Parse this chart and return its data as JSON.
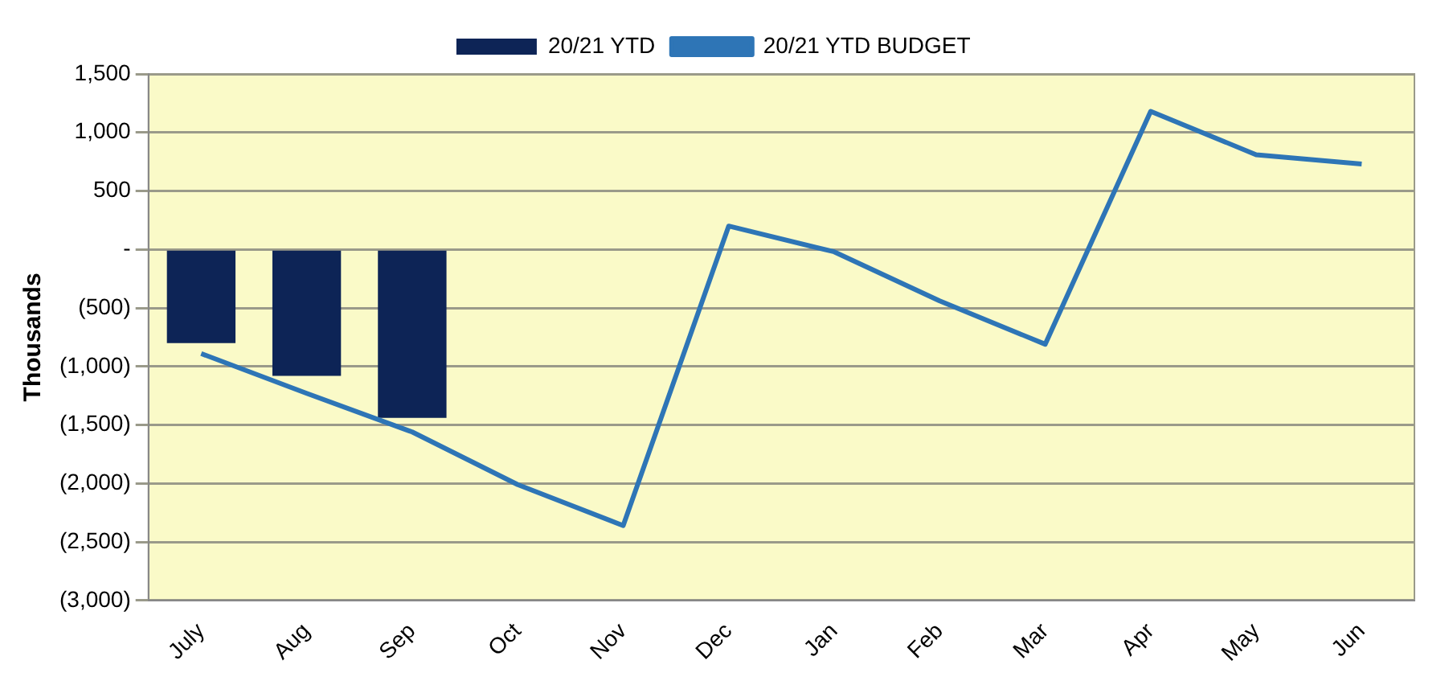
{
  "chart_data": {
    "type": "bar",
    "ylabel": "Thousands",
    "categories": [
      "July",
      "Aug",
      "Sep",
      "Oct",
      "Nov",
      "Dec",
      "Jan",
      "Feb",
      "Mar",
      "Apr",
      "May",
      "Jun"
    ],
    "series": [
      {
        "name": "20/21 YTD",
        "color": "#0d2456",
        "values": [
          -800,
          -1080,
          -1440,
          null,
          null,
          null,
          null,
          null,
          null,
          null,
          null,
          null
        ]
      },
      {
        "name": "20/21 YTD BUDGET",
        "type": "line",
        "color": "#2e75b6",
        "values": [
          -890,
          -1230,
          -1560,
          -2010,
          -2360,
          200,
          -20,
          -440,
          -810,
          1180,
          810,
          730
        ]
      }
    ],
    "ylim": [
      -3000,
      1500
    ],
    "yticks": [
      {
        "value": 1500,
        "label": "1,500"
      },
      {
        "value": 1000,
        "label": "1,000"
      },
      500,
      {
        "value": 0,
        "label": "-"
      },
      {
        "value": -500,
        "label": "(500)"
      },
      {
        "value": -1000,
        "label": "(1,000)"
      },
      {
        "value": -1500,
        "label": "(1,500)"
      },
      {
        "value": -2000,
        "label": "(2,000)"
      },
      {
        "value": -2500,
        "label": "(2,500)"
      },
      {
        "value": -3000,
        "label": "(3,000)"
      }
    ],
    "grid": "y",
    "legend": "top",
    "marker": "none",
    "line_style": "solid"
  }
}
